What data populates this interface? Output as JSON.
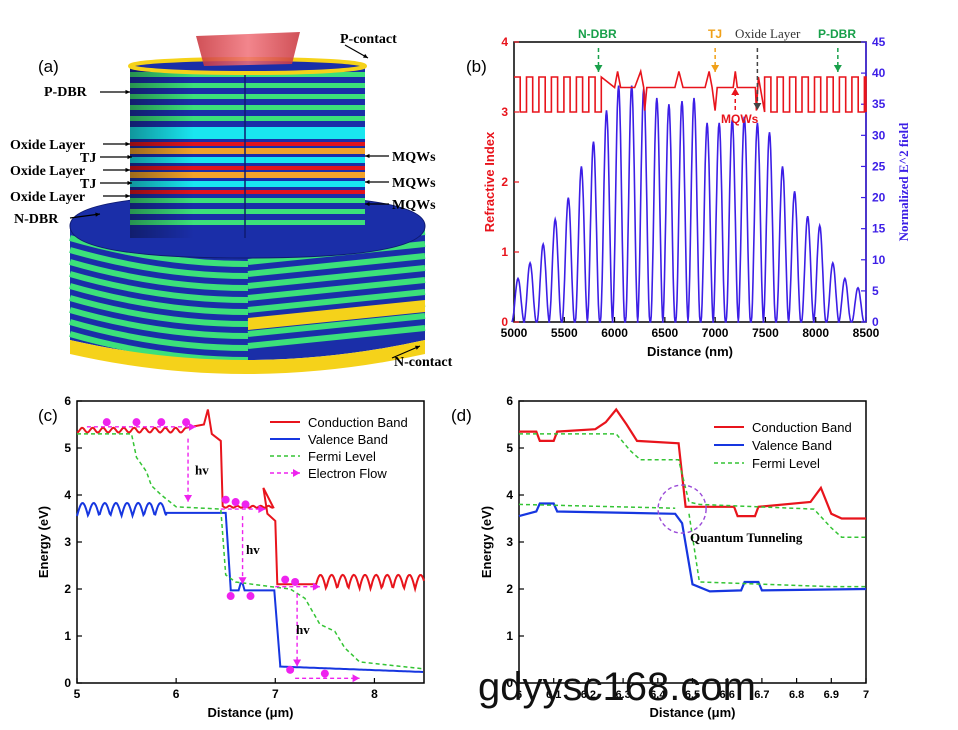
{
  "panel_a": {
    "label": "(a)",
    "top_labels": {
      "p_contact": "P-contact",
      "p_dbr": "P-DBR"
    },
    "left_labels": [
      "Oxide Layer",
      "TJ",
      "Oxide Layer",
      "TJ",
      "Oxide Layer",
      "N-DBR"
    ],
    "right_labels": [
      "MQWs",
      "MQWs",
      "MQWs"
    ],
    "bottom_label": "N-contact",
    "colors": {
      "dbr_green": "#3ce07a",
      "dbr_blue": "#1a2ea8",
      "oxide": "#19e6f0",
      "tj_red": "#e0141e",
      "mqw_orange": "#f2a22a",
      "contact_gold": "#f5d21a",
      "mesa_red": "#e0484e"
    }
  },
  "panel_b": {
    "label": "(b)",
    "annotations": {
      "n_dbr": "N-DBR",
      "tj": "TJ",
      "oxide": "Oxide Layer",
      "p_dbr": "P-DBR",
      "mqws": "MQWs"
    },
    "colors": {
      "index": "#e8141c",
      "field": "#3c1ee6",
      "green": "#18a04a",
      "orange": "#f0a018",
      "black": "#444444"
    }
  },
  "panel_c": {
    "label": "(c)",
    "hv": "hv",
    "legend": [
      "Conduction Band",
      "Valence Band",
      "Fermi Level",
      "Electron Flow"
    ],
    "colors": {
      "cb": "#e8141c",
      "vb": "#1636e0",
      "fermi": "#34c434",
      "flow": "#ee22ee"
    }
  },
  "panel_d": {
    "label": "(d)",
    "tunneling": "Quantum Tunneling",
    "legend": [
      "Conduction Band",
      "Valence Band",
      "Fermi Level"
    ]
  },
  "watermark": "gdyysc168.com",
  "chart_data": [
    {
      "type": "line",
      "panel": "(b)",
      "xlabel": "Distance (nm)",
      "ylabel": "Refractive Index",
      "y2label": "Normalized E^2 field",
      "xlim": [
        5000,
        8500
      ],
      "ylim": [
        0,
        4
      ],
      "y2lim": [
        0,
        45
      ],
      "xticks": [
        5000,
        5500,
        6000,
        6500,
        7000,
        7500,
        8000,
        8500
      ],
      "yticks": [
        0,
        1,
        2,
        3,
        4
      ],
      "y2ticks": [
        0,
        5,
        10,
        15,
        20,
        25,
        30,
        35,
        40,
        45
      ],
      "series": [
        {
          "axis": "left",
          "x_range": [
            5000,
            8500
          ],
          "low": 3.0,
          "high": 3.5,
          "style": "square-wave"
        },
        {
          "axis": "right",
          "peaks_x": [
            5040,
            5160,
            5290,
            5410,
            5540,
            5670,
            5790,
            5920,
            6040,
            6170,
            6290,
            6420,
            6540,
            6670,
            6790,
            6920,
            7040,
            7170,
            7290,
            7420,
            7540,
            7670,
            7790,
            7920,
            8040,
            8170,
            8290,
            8420
          ],
          "peaks_y": [
            7,
            9.5,
            12.5,
            16.5,
            20,
            25,
            29,
            34,
            38,
            38,
            37.5,
            36,
            35,
            35.5,
            36,
            32,
            32,
            32.5,
            33,
            32,
            30.5,
            25,
            21,
            17,
            15.5,
            9.5,
            7,
            5.5
          ]
        }
      ]
    },
    {
      "type": "line",
      "panel": "(c)",
      "xlabel": "Distance (μm)",
      "ylabel": "Energy (eV)",
      "xlim": [
        5,
        8.5
      ],
      "ylim": [
        0,
        6
      ],
      "xticks": [
        5,
        6,
        7,
        8
      ],
      "yticks": [
        0,
        1,
        2,
        3,
        4,
        5,
        6
      ],
      "series": [
        {
          "name": "Conduction Band",
          "x": [
            5.0,
            6.1,
            6.3,
            6.45,
            7.0,
            7.4,
            8.5
          ],
          "y": [
            5.4,
            5.4,
            5.8,
            3.75,
            3.75,
            2.2,
            2.2
          ]
        },
        {
          "name": "Valence Band",
          "x": [
            5.0,
            6.1,
            6.45,
            6.6,
            7.0,
            7.1,
            8.5
          ],
          "y": [
            3.6,
            3.65,
            3.65,
            1.95,
            2.05,
            0.35,
            0.25
          ]
        },
        {
          "name": "Fermi Level",
          "x": [
            5.0,
            5.6,
            5.8,
            6.45,
            6.55,
            7.0,
            7.4,
            8.5
          ],
          "y": [
            5.3,
            5.3,
            4.0,
            3.7,
            2.1,
            2.0,
            0.6,
            0.3
          ]
        }
      ]
    },
    {
      "type": "line",
      "panel": "(d)",
      "xlabel": "Distance (μm)",
      "ylabel": "Energy (eV)",
      "xlim": [
        6,
        7
      ],
      "ylim": [
        0,
        6
      ],
      "xticks": [
        6,
        6.1,
        6.2,
        6.3,
        6.4,
        6.5,
        6.6,
        6.7,
        6.8,
        6.9,
        7
      ],
      "yticks": [
        0,
        1,
        2,
        3,
        4,
        5,
        6
      ],
      "series": [
        {
          "name": "Conduction Band",
          "x": [
            6.0,
            6.22,
            6.28,
            6.33,
            6.46,
            6.49,
            6.86,
            6.88,
            6.93,
            7.0
          ],
          "y": [
            5.35,
            5.4,
            5.8,
            5.2,
            5.1,
            3.75,
            3.8,
            4.15,
            3.5,
            3.5
          ]
        },
        {
          "name": "Valence Band",
          "x": [
            6.0,
            6.45,
            6.49,
            6.52,
            7.0
          ],
          "y": [
            3.55,
            3.6,
            2.1,
            1.95,
            2.0
          ]
        },
        {
          "name": "Fermi Level",
          "x": [
            6.0,
            6.28,
            6.35,
            6.46,
            6.49,
            6.85,
            6.93,
            7.0
          ],
          "y": [
            5.3,
            5.3,
            4.75,
            4.75,
            3.8,
            3.7,
            3.1,
            3.1
          ]
        }
      ]
    }
  ]
}
